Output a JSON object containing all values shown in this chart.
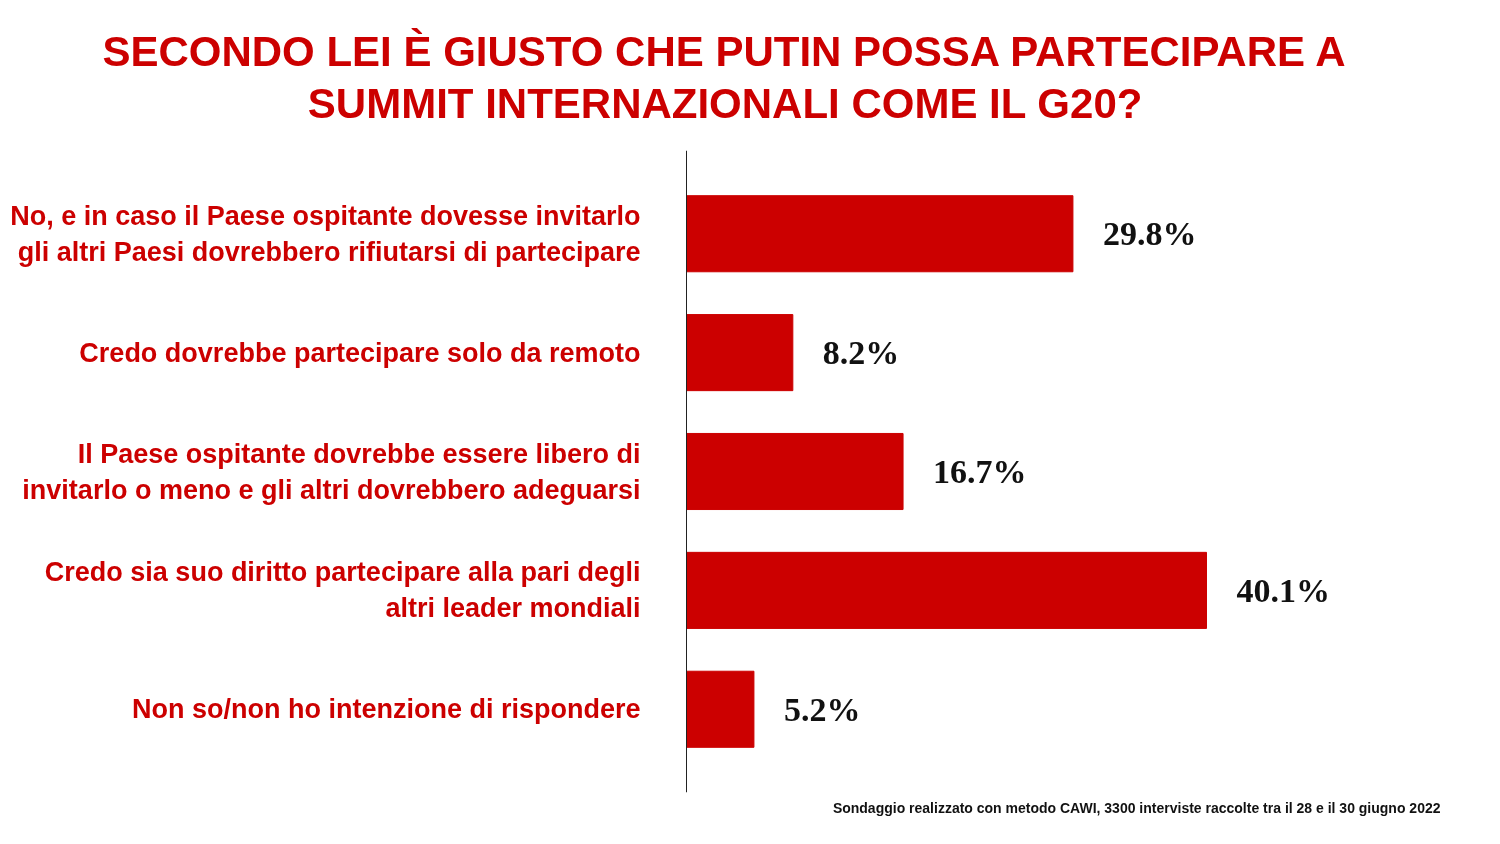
{
  "chart_data": {
    "type": "bar",
    "orientation": "horizontal",
    "title": "SECONDO LEI È GIUSTO CHE PUTIN POSSA PARTECIPARE A SUMMIT INTERNAZIONALI COME IL G20?",
    "categories": [
      "No, e in caso il Paese ospitante dovesse invitarlo gli altri Paesi dovrebbero rifiutarsi di partecipare",
      "Credo dovrebbe partecipare solo da remoto",
      "Il Paese ospitante dovrebbe essere libero di invitarlo o meno e gli altri dovrebbero adeguarsi",
      "Credo sia suo diritto partecipare alla pari degli altri leader mondiali",
      "Non so/non ho intenzione di rispondere"
    ],
    "values": [
      29.8,
      8.2,
      16.7,
      40.1,
      5.2
    ],
    "value_labels": [
      "29.8%",
      "8.2%",
      "16.7%",
      "40.1%",
      "5.2%"
    ],
    "color": "#cc0000",
    "grid": false,
    "annotations": [
      "Sondaggio realizzato con metodo CAWI, 3300 interviste raccolte tra il 28 e il 30 giugno 2022"
    ]
  }
}
